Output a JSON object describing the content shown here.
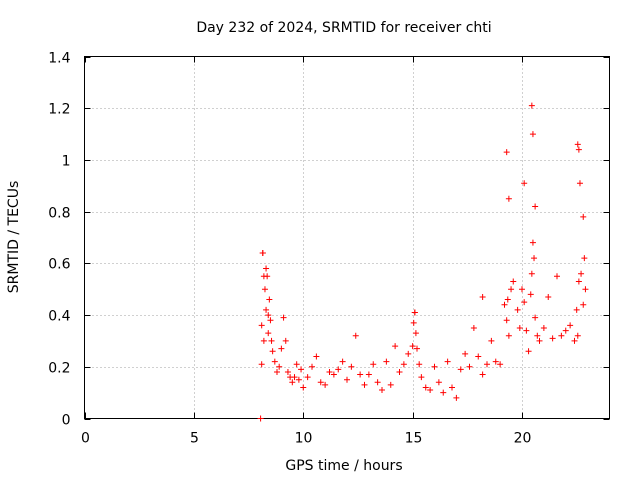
{
  "chart_data": {
    "type": "scatter",
    "title": "Day 232 of 2024, SRMTID for receiver chti",
    "xlabel": "GPS time / hours",
    "ylabel": "SRMTID / TECUs",
    "xlim": [
      0,
      24
    ],
    "ylim": [
      0,
      1.4
    ],
    "xticks": [
      0,
      5,
      10,
      15,
      20
    ],
    "xtick_labels": [
      "0",
      "5",
      "10",
      "15",
      "20"
    ],
    "yticks": [
      0,
      0.2,
      0.4,
      0.6,
      0.8,
      1.0,
      1.2,
      1.4
    ],
    "ytick_labels": [
      "0",
      "0.2",
      "0.4",
      "0.6",
      "0.8",
      "1",
      "1.2",
      "1.4"
    ],
    "grid": true,
    "marker": "+",
    "color": "#ff0000",
    "series": [
      {
        "name": "SRMTID",
        "x": [
          8.05,
          8.1,
          8.1,
          8.15,
          8.2,
          8.2,
          8.25,
          8.3,
          8.3,
          8.35,
          8.4,
          8.4,
          8.45,
          8.5,
          8.55,
          8.6,
          8.7,
          8.8,
          8.9,
          9.0,
          9.1,
          9.2,
          9.3,
          9.4,
          9.5,
          9.6,
          9.7,
          9.8,
          9.9,
          10.0,
          10.2,
          10.4,
          10.6,
          10.8,
          11.0,
          11.2,
          11.4,
          11.6,
          11.8,
          12.0,
          12.2,
          12.4,
          12.6,
          12.8,
          13.0,
          13.2,
          13.4,
          13.6,
          13.8,
          14.0,
          14.2,
          14.4,
          14.6,
          14.8,
          15.0,
          15.05,
          15.1,
          15.15,
          15.2,
          15.3,
          15.4,
          15.6,
          15.8,
          16.0,
          16.2,
          16.4,
          16.6,
          16.8,
          17.0,
          17.2,
          17.4,
          17.6,
          17.8,
          18.0,
          18.2,
          18.4,
          18.6,
          18.8,
          19.0,
          19.2,
          19.3,
          19.35,
          19.4,
          19.5,
          19.6,
          19.8,
          19.9,
          20.0,
          20.1,
          20.2,
          20.3,
          20.4,
          20.45,
          20.5,
          20.55,
          20.6,
          20.7,
          20.8,
          21.0,
          21.2,
          21.4,
          21.6,
          21.8,
          22.0,
          22.2,
          22.4,
          22.5,
          22.55,
          22.6,
          22.7,
          22.8,
          22.85,
          22.9
        ],
        "y": [
          0.0,
          0.36,
          0.21,
          0.64,
          0.3,
          0.55,
          0.5,
          0.58,
          0.42,
          0.55,
          0.4,
          0.33,
          0.46,
          0.38,
          0.3,
          0.26,
          0.22,
          0.18,
          0.2,
          0.27,
          0.39,
          0.3,
          0.18,
          0.16,
          0.14,
          0.16,
          0.21,
          0.15,
          0.19,
          0.12,
          0.16,
          0.2,
          0.24,
          0.14,
          0.13,
          0.18,
          0.17,
          0.19,
          0.22,
          0.15,
          0.2,
          0.32,
          0.17,
          0.13,
          0.17,
          0.21,
          0.14,
          0.11,
          0.22,
          0.13,
          0.28,
          0.18,
          0.21,
          0.25,
          0.28,
          0.37,
          0.41,
          0.33,
          0.27,
          0.21,
          0.16,
          0.12,
          0.11,
          0.2,
          0.14,
          0.1,
          0.22,
          0.12,
          0.08,
          0.19,
          0.25,
          0.2,
          0.35,
          0.24,
          0.17,
          0.21,
          0.3,
          0.22,
          0.21,
          0.44,
          0.38,
          0.46,
          0.32,
          0.5,
          0.53,
          0.42,
          0.35,
          0.5,
          0.45,
          0.34,
          0.26,
          0.48,
          0.56,
          0.68,
          0.62,
          0.39,
          0.32,
          0.3,
          0.35,
          0.47,
          0.31,
          0.55,
          0.32,
          0.34,
          0.36,
          0.3,
          0.42,
          0.32,
          0.53,
          0.56,
          0.44,
          0.62,
          0.5
        ],
        "peaks_x": [
          8.15,
          15.1,
          18.2,
          19.3,
          19.4,
          20.1,
          20.45,
          20.5,
          20.6,
          22.55,
          22.6,
          22.65,
          22.8
        ],
        "peaks_y": [
          0.64,
          0.41,
          0.47,
          1.03,
          0.85,
          0.91,
          1.21,
          1.1,
          0.82,
          1.06,
          1.04,
          0.91,
          0.78
        ]
      }
    ]
  }
}
